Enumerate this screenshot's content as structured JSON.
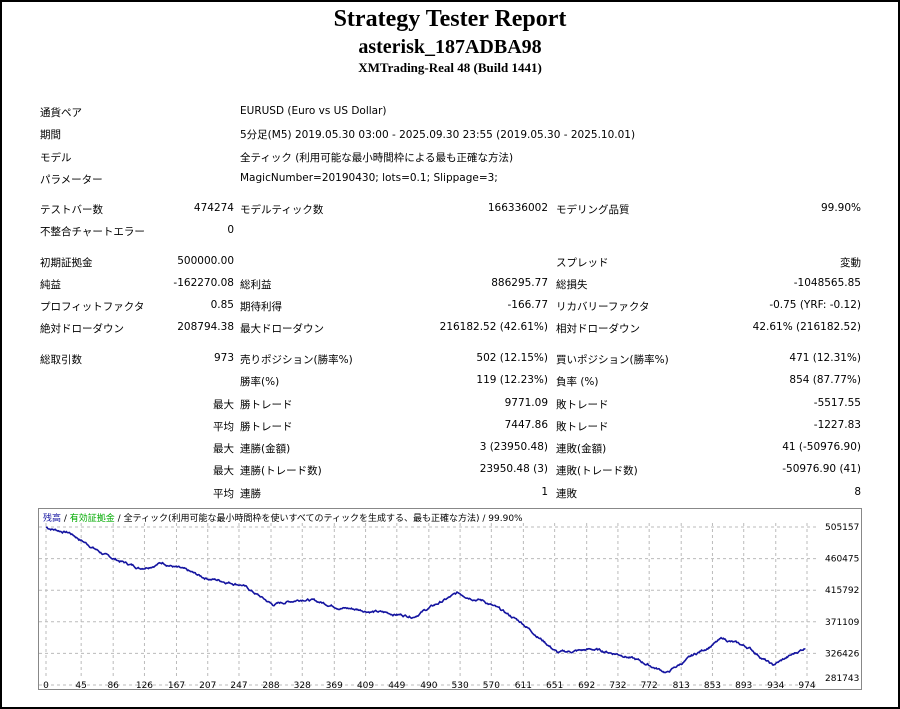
{
  "header": {
    "title": "Strategy Tester Report",
    "ea": "asterisk_187ADBA98",
    "server": "XMTrading-Real 48 (Build 1441)"
  },
  "info": [
    {
      "label": "通貨ペア",
      "value": "EURUSD (Euro vs US Dollar)"
    },
    {
      "label": "期間",
      "value": "5分足(M5) 2019.05.30 03:00 - 2025.09.30 23:55 (2019.05.30 - 2025.10.01)"
    },
    {
      "label": "モデル",
      "value": "全ティック (利用可能な最小時間枠による最も正確な方法)"
    },
    {
      "label": "パラメーター",
      "value": "MagicNumber=20190430; lots=0.1; Slippage=3;"
    }
  ],
  "rows": [
    {
      "c": [
        "テストバー数",
        "474274",
        "モデルティック数",
        "166336002",
        "モデリング品質",
        "99.90%"
      ]
    },
    {
      "c": [
        "不整合チャートエラー",
        "0",
        "",
        "",
        "",
        ""
      ]
    },
    {
      "c": [
        "初期証拠金",
        "500000.00",
        "",
        "",
        "スプレッド",
        "変動"
      ]
    },
    {
      "c": [
        "純益",
        "-162270.08",
        "総利益",
        "886295.77",
        "総損失",
        "-1048565.85"
      ]
    },
    {
      "c": [
        "プロフィットファクタ",
        "0.85",
        "期待利得",
        "-166.77",
        "リカバリーファクタ",
        "-0.75 (YRF: -0.12)"
      ]
    },
    {
      "c": [
        "絶対ドローダウン",
        "208794.38",
        "最大ドローダウン",
        "216182.52 (42.61%)",
        "相対ドローダウン",
        "42.61% (216182.52)"
      ]
    },
    {
      "c": [
        "総取引数",
        "973",
        "売りポジション(勝率%)",
        "502 (12.15%)",
        "買いポジション(勝率%)",
        "471 (12.31%)"
      ]
    },
    {
      "c": [
        "",
        "",
        "勝率(%)",
        "119 (12.23%)",
        "負率 (%)",
        "854 (87.77%)"
      ]
    },
    {
      "c": [
        "",
        "最大",
        "勝トレード",
        "9771.09",
        "敗トレード",
        "-5517.55"
      ]
    },
    {
      "c": [
        "",
        "平均",
        "勝トレード",
        "7447.86",
        "敗トレード",
        "-1227.83"
      ]
    },
    {
      "c": [
        "",
        "最大",
        "連勝(金額)",
        "3 (23950.48)",
        "連敗(金額)",
        "41 (-50976.90)"
      ]
    },
    {
      "c": [
        "",
        "最大",
        "連勝(トレード数)",
        "23950.48 (3)",
        "連敗(トレード数)",
        "-50976.90 (41)"
      ]
    },
    {
      "c": [
        "",
        "平均",
        "連勝",
        "1",
        "連敗",
        "8"
      ]
    }
  ],
  "chart_data": {
    "type": "line",
    "legend": {
      "balance": "残高",
      "equity": "有効証拠金",
      "model": "全ティック(利用可能な最小時間枠を使いすべてのティックを生成する、最も正確な方法)",
      "quality": "99.90%",
      "sep": " / "
    },
    "x_ticks": [
      "0",
      "45",
      "86",
      "126",
      "167",
      "207",
      "247",
      "288",
      "328",
      "369",
      "409",
      "449",
      "490",
      "530",
      "570",
      "611",
      "651",
      "692",
      "732",
      "772",
      "813",
      "853",
      "893",
      "934",
      "974"
    ],
    "y_ticks": [
      "505157",
      "460475",
      "415792",
      "371109",
      "326426",
      "281743"
    ],
    "xlim": [
      0,
      974
    ],
    "ylim": [
      281743,
      505157
    ],
    "series": [
      {
        "name": "残高",
        "color": "#1414a0",
        "points": [
          [
            0,
            505000
          ],
          [
            30,
            498000
          ],
          [
            79,
            464000
          ],
          [
            120,
            448000
          ],
          [
            150,
            456000
          ],
          [
            200,
            435000
          ],
          [
            250,
            425000
          ],
          [
            290,
            396000
          ],
          [
            330,
            405000
          ],
          [
            380,
            392000
          ],
          [
            430,
            385000
          ],
          [
            470,
            380000
          ],
          [
            527,
            412000
          ],
          [
            560,
            402000
          ],
          [
            610,
            370000
          ],
          [
            655,
            328000
          ],
          [
            700,
            333000
          ],
          [
            740,
            325000
          ],
          [
            795,
            300000
          ],
          [
            830,
            325000
          ],
          [
            866,
            348000
          ],
          [
            900,
            335000
          ],
          [
            930,
            310000
          ],
          [
            973,
            336000
          ]
        ]
      }
    ]
  }
}
